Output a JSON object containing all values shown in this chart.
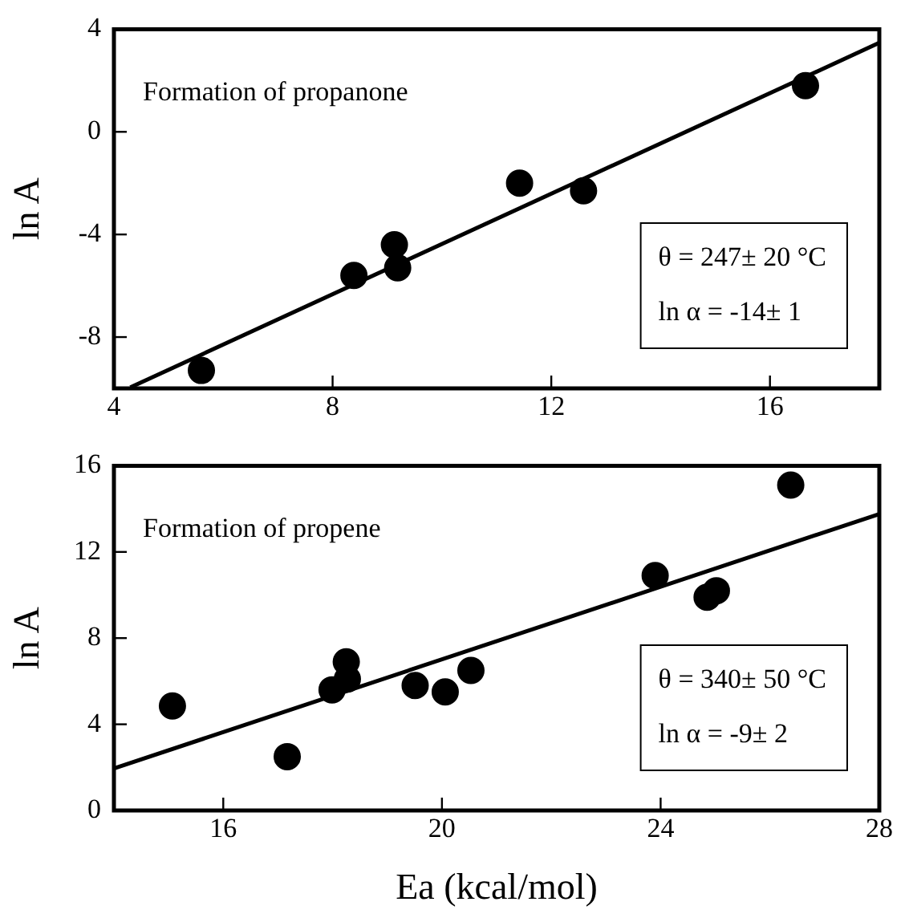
{
  "chart_data": [
    {
      "type": "scatter",
      "ylabel": "ln A",
      "xlim": [
        4,
        18
      ],
      "xticks": [
        4,
        8,
        12,
        16
      ],
      "ylim": [
        -10,
        4
      ],
      "yticks": [
        -8,
        -4,
        0,
        4
      ],
      "grid": false,
      "legend": false,
      "annotations": [
        "Formation of propanone",
        "θ = 247± 20 °C",
        "ln α = -14± 1"
      ],
      "series": [
        {
          "color": "#000000",
          "marker": "circle",
          "x": [
            5.6,
            8.39,
            9.13,
            9.19,
            11.42,
            12.59,
            16.65
          ],
          "values": [
            -9.3,
            -5.6,
            -4.4,
            -5.3,
            -2.0,
            -2.3,
            1.8
          ]
        },
        {
          "type": "line",
          "marker": "none",
          "color": "#000000",
          "x": [
            4.3,
            18
          ],
          "values": [
            -9.96,
            3.47
          ]
        }
      ]
    },
    {
      "type": "scatter",
      "xlabel": "Ea (kcal/mol)",
      "ylabel": "ln A",
      "xlim": [
        14,
        28
      ],
      "xticks": [
        16,
        20,
        24,
        28
      ],
      "ylim": [
        0,
        16
      ],
      "yticks": [
        0,
        4,
        8,
        12,
        16
      ],
      "grid": false,
      "legend": false,
      "annotations": [
        "Formation of propene",
        "θ = 340± 50 °C",
        "ln α = -9± 2"
      ],
      "series": [
        {
          "color": "#000000",
          "marker": "circle",
          "x": [
            15.07,
            17.17,
            17.99,
            18.25,
            18.27,
            19.51,
            20.06,
            20.53,
            23.9,
            24.85,
            25.02,
            26.38
          ],
          "values": [
            4.85,
            2.5,
            5.6,
            6.9,
            6.1,
            5.8,
            5.5,
            6.5,
            10.9,
            9.9,
            10.2,
            15.1
          ]
        },
        {
          "type": "line",
          "marker": "none",
          "color": "#000000",
          "x": [
            14,
            28
          ],
          "values": [
            1.95,
            13.76
          ]
        }
      ]
    }
  ]
}
